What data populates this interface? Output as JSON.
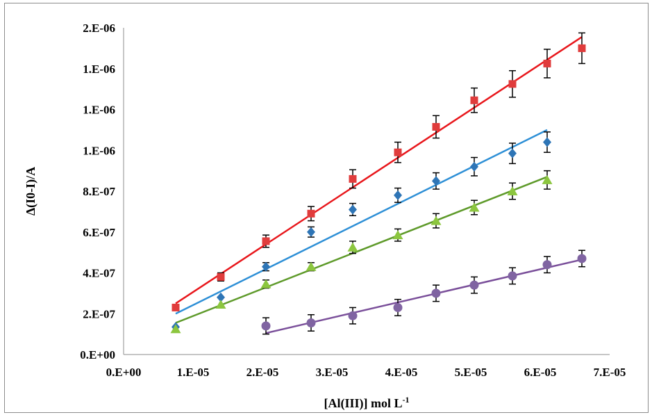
{
  "chart_data": {
    "type": "scatter",
    "title": "",
    "xlabel": "[Al(III)]  mol L",
    "xlabel_superscript": "-1",
    "ylabel": "Δ(I0-I)/A",
    "x_ticks": [
      "0.E+00",
      "1.E-05",
      "2.E-05",
      "3.E-05",
      "4.E-05",
      "5.E-05",
      "6.E-05",
      "7.E-05"
    ],
    "y_ticks": [
      "0.E+00",
      "2.E-07",
      "4.E-07",
      "6.E-07",
      "8.E-07",
      "1.E-06",
      "1.E-06",
      "1.E-06",
      "2.E-06"
    ],
    "xlim": [
      0,
      7e-05
    ],
    "ylim": [
      0,
      1.6e-06
    ],
    "grid": false,
    "legend": "none",
    "series": [
      {
        "marker": "square",
        "color": "#e03c3c",
        "line_color": "#e8161b",
        "x": [
          7.5e-06,
          1.4e-05,
          2.05e-05,
          2.7e-05,
          3.3e-05,
          3.95e-05,
          4.5e-05,
          5.05e-05,
          5.6e-05,
          6.1e-05,
          6.6e-05
        ],
        "y": [
          2.3e-07,
          3.8e-07,
          5.55e-07,
          6.9e-07,
          8.6e-07,
          9.9e-07,
          1.115e-06,
          1.245e-06,
          1.325e-06,
          1.425e-06,
          1.5e-06
        ],
        "err": [
          0,
          2e-08,
          3e-08,
          3.5e-08,
          4.5e-08,
          5e-08,
          5.5e-08,
          6e-08,
          6.5e-08,
          7e-08,
          7.5e-08
        ],
        "fit": [
          [
            7.5e-06,
            2.5e-07
          ],
          [
            6.6e-05,
            1.555e-06
          ]
        ]
      },
      {
        "marker": "diamond",
        "color": "#2e75b6",
        "line_color": "#2d8fd6",
        "x": [
          7.5e-06,
          1.4e-05,
          2.05e-05,
          2.7e-05,
          3.3e-05,
          3.95e-05,
          4.5e-05,
          5.05e-05,
          5.6e-05,
          6.1e-05
        ],
        "y": [
          1.35e-07,
          2.8e-07,
          4.3e-07,
          6e-07,
          7.1e-07,
          7.8e-07,
          8.5e-07,
          9.2e-07,
          9.85e-07,
          1.04e-06
        ],
        "err": [
          0,
          0,
          2e-08,
          2.5e-08,
          3e-08,
          3.5e-08,
          4e-08,
          4.5e-08,
          5e-08,
          5e-08
        ],
        "fit": [
          [
            7.5e-06,
            2e-07
          ],
          [
            6.1e-05,
            1.1e-06
          ]
        ]
      },
      {
        "marker": "triangle",
        "color": "#8cc63f",
        "line_color": "#5e9a2a",
        "x": [
          7.5e-06,
          1.4e-05,
          2.05e-05,
          2.7e-05,
          3.3e-05,
          3.95e-05,
          4.5e-05,
          5.05e-05,
          5.6e-05,
          6.1e-05
        ],
        "y": [
          1.25e-07,
          2.45e-07,
          3.45e-07,
          4.3e-07,
          5.25e-07,
          5.85e-07,
          6.55e-07,
          7.2e-07,
          8e-07,
          8.55e-07
        ],
        "err": [
          0,
          0,
          2e-08,
          2e-08,
          3e-08,
          3e-08,
          3.5e-08,
          3.5e-08,
          4e-08,
          4.5e-08
        ],
        "fit": [
          [
            7.5e-06,
            1.55e-07
          ],
          [
            6.1e-05,
            8.7e-07
          ]
        ]
      },
      {
        "marker": "circle",
        "color": "#8064a2",
        "line_color": "#7a4f9a",
        "x": [
          2.05e-05,
          2.7e-05,
          3.3e-05,
          3.95e-05,
          4.5e-05,
          5.05e-05,
          5.6e-05,
          6.1e-05,
          6.6e-05
        ],
        "y": [
          1.4e-07,
          1.55e-07,
          1.9e-07,
          2.3e-07,
          3e-07,
          3.4e-07,
          3.85e-07,
          4.4e-07,
          4.7e-07
        ],
        "err": [
          4e-08,
          4e-08,
          4e-08,
          4e-08,
          4e-08,
          4e-08,
          4e-08,
          4e-08,
          4e-08
        ],
        "fit": [
          [
            2.05e-05,
            1.05e-07
          ],
          [
            6.6e-05,
            4.65e-07
          ]
        ]
      }
    ]
  }
}
